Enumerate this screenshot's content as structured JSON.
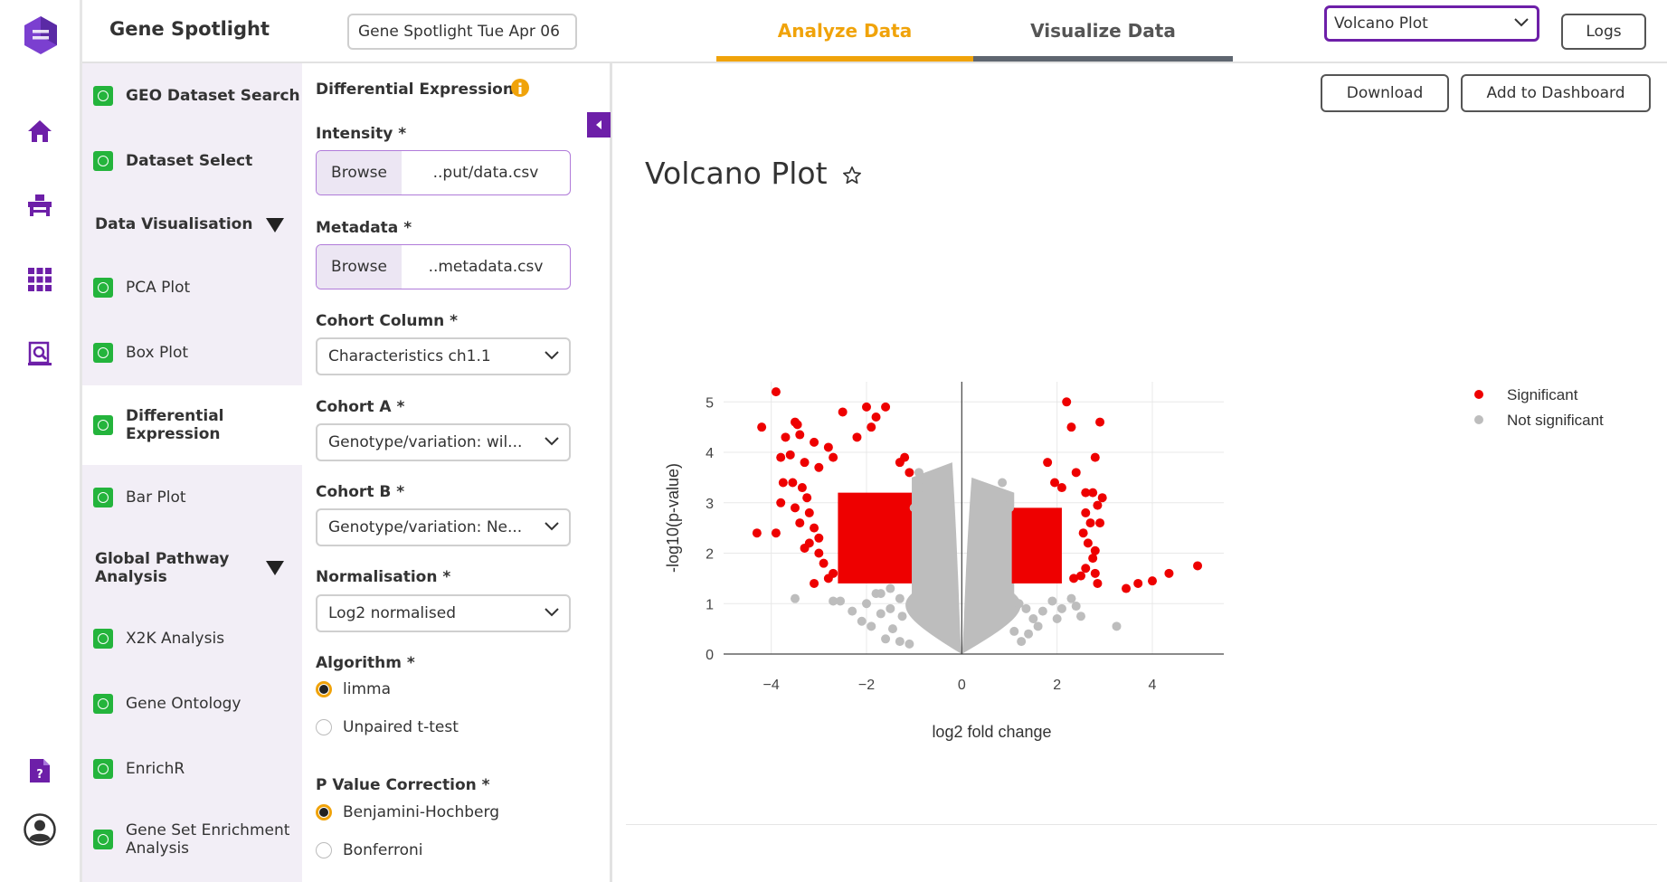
{
  "app": {
    "title": "Gene Spotlight",
    "session_name": "Gene Spotlight Tue Apr 06"
  },
  "tabs": [
    {
      "label": "Analyze Data",
      "active": true
    },
    {
      "label": "Visualize Data",
      "active": false
    }
  ],
  "header": {
    "plot_select_value": "Volcano Plot",
    "logs_label": "Logs"
  },
  "rail": {
    "icons": [
      "app-logo-icon",
      "home-icon",
      "workbench-icon",
      "grid-apps-icon",
      "dataset-viewer-icon",
      "help-document-icon",
      "user-account-icon"
    ]
  },
  "nav": {
    "items": [
      {
        "label": "GEO Dataset Search",
        "bold": true,
        "status": "done"
      },
      {
        "label": "Dataset Select",
        "bold": true,
        "status": "done"
      }
    ],
    "sections": [
      {
        "title": "Data Visualisation",
        "items": [
          {
            "label": "PCA Plot",
            "status": "done"
          },
          {
            "label": "Box Plot",
            "status": "done"
          },
          {
            "label": "Differential Expression",
            "status": "done",
            "active": true
          },
          {
            "label": "Bar Plot",
            "status": "done"
          }
        ]
      },
      {
        "title": "Global Pathway Analysis",
        "items": [
          {
            "label": "X2K Analysis",
            "status": "done"
          },
          {
            "label": "Gene Ontology",
            "status": "done"
          },
          {
            "label": "EnrichR",
            "status": "done"
          },
          {
            "label": "Gene Set Enrichment Analysis",
            "status": "done"
          }
        ]
      }
    ]
  },
  "form": {
    "title": "Differential Expression",
    "intensity": {
      "label": "Intensity *",
      "browse": "Browse",
      "file": "..put/data.csv"
    },
    "metadata": {
      "label": "Metadata *",
      "browse": "Browse",
      "file": "..metadata.csv"
    },
    "cohort_column": {
      "label": "Cohort Column *",
      "value": "Characteristics ch1.1"
    },
    "cohort_a": {
      "label": "Cohort A *",
      "value": "Genotype/variation: wil..."
    },
    "cohort_b": {
      "label": "Cohort B *",
      "value": "Genotype/variation: Ne..."
    },
    "normalisation": {
      "label": "Normalisation *",
      "value": "Log2 normalised"
    },
    "algorithm": {
      "label": "Algorithm *",
      "options": [
        "limma",
        "Unpaired t-test"
      ],
      "selected": "limma"
    },
    "p_value_correction": {
      "label": "P Value Correction *",
      "options": [
        "Benjamini-Hochberg",
        "Bonferroni"
      ],
      "selected": "Benjamini-Hochberg"
    }
  },
  "main": {
    "download_label": "Download",
    "add_dashboard_label": "Add to Dashboard",
    "plot_title": "Volcano Plot",
    "favorite_icon": "star-outline-icon"
  },
  "colors": {
    "accent_orange": "#f0a30a",
    "brand_purple": "#6d1fa8",
    "check_green": "#24b43c",
    "significant": "#ee0000",
    "not_significant": "#bdbdbd"
  },
  "chart_data": {
    "type": "scatter",
    "xlabel": "log2 fold change",
    "ylabel": "-log10(p-value)",
    "xlim": [
      -5.0,
      5.5
    ],
    "ylim": [
      0,
      5.4
    ],
    "xticks": [
      -4,
      -2,
      0,
      2,
      4
    ],
    "xtick_labels": [
      "−4",
      "−2",
      "0",
      "2",
      "4"
    ],
    "yticks": [
      0,
      1,
      2,
      3,
      4,
      5
    ],
    "ytick_labels": [
      "0",
      "1",
      "2",
      "3",
      "4",
      "5"
    ],
    "grid": true,
    "legend": "top-right",
    "series": [
      {
        "name": "Significant",
        "color": "#ee0000",
        "dense_regions": [
          {
            "x": [
              -2.6,
              -1.05
            ],
            "y": [
              1.4,
              3.2
            ]
          },
          {
            "x": [
              1.05,
              2.1
            ],
            "y": [
              1.4,
              2.9
            ]
          }
        ],
        "points": [
          [
            -3.9,
            5.2
          ],
          [
            -4.2,
            4.5
          ],
          [
            -3.5,
            4.6
          ],
          [
            -3.45,
            4.55
          ],
          [
            -3.7,
            4.3
          ],
          [
            -3.4,
            4.35
          ],
          [
            -3.1,
            4.2
          ],
          [
            -2.8,
            4.1
          ],
          [
            -2.5,
            4.8
          ],
          [
            -2.0,
            4.9
          ],
          [
            -1.6,
            4.9
          ],
          [
            -1.8,
            4.7
          ],
          [
            -1.9,
            4.5
          ],
          [
            -2.2,
            4.3
          ],
          [
            -3.8,
            3.9
          ],
          [
            -3.6,
            3.95
          ],
          [
            -3.3,
            3.8
          ],
          [
            -3.0,
            3.7
          ],
          [
            -2.7,
            3.9
          ],
          [
            -1.2,
            3.9
          ],
          [
            -1.1,
            3.6
          ],
          [
            -1.3,
            3.8
          ],
          [
            -4.3,
            2.4
          ],
          [
            -3.9,
            2.4
          ],
          [
            -3.8,
            3.0
          ],
          [
            -3.75,
            3.4
          ],
          [
            -3.55,
            3.4
          ],
          [
            -3.35,
            3.3
          ],
          [
            -3.5,
            2.9
          ],
          [
            -3.2,
            2.8
          ],
          [
            -3.4,
            2.6
          ],
          [
            -3.1,
            2.5
          ],
          [
            -3.0,
            2.3
          ],
          [
            -3.2,
            2.2
          ],
          [
            -3.0,
            2.0
          ],
          [
            -2.9,
            1.8
          ],
          [
            -2.7,
            1.6
          ],
          [
            -2.8,
            1.5
          ],
          [
            -3.1,
            1.4
          ],
          [
            -2.5,
            1.5
          ],
          [
            -2.3,
            1.5
          ],
          [
            -3.3,
            2.1
          ],
          [
            -3.25,
            3.1
          ],
          [
            2.2,
            5.0
          ],
          [
            2.3,
            4.5
          ],
          [
            2.9,
            4.6
          ],
          [
            2.8,
            3.9
          ],
          [
            1.8,
            3.8
          ],
          [
            2.4,
            3.6
          ],
          [
            1.95,
            3.4
          ],
          [
            2.1,
            3.3
          ],
          [
            2.6,
            3.2
          ],
          [
            2.75,
            3.2
          ],
          [
            2.95,
            3.1
          ],
          [
            2.85,
            2.95
          ],
          [
            2.6,
            2.8
          ],
          [
            2.7,
            2.6
          ],
          [
            2.9,
            2.6
          ],
          [
            2.55,
            2.4
          ],
          [
            2.65,
            2.2
          ],
          [
            2.8,
            2.05
          ],
          [
            2.75,
            1.9
          ],
          [
            2.6,
            1.7
          ],
          [
            2.8,
            1.6
          ],
          [
            2.85,
            1.4
          ],
          [
            2.35,
            1.5
          ],
          [
            2.5,
            1.55
          ],
          [
            3.45,
            1.3
          ],
          [
            3.7,
            1.4
          ],
          [
            4.0,
            1.45
          ],
          [
            4.35,
            1.6
          ],
          [
            4.95,
            1.75
          ]
        ]
      },
      {
        "name": "Not significant",
        "color": "#bdbdbd",
        "dense_regions": [
          {
            "funnel": "left",
            "x_inner": -0.05,
            "x_outer": -1.05,
            "y_top": 3.8
          },
          {
            "funnel": "right",
            "x_inner": 0.05,
            "x_outer": 1.1,
            "y_top": 3.5
          }
        ],
        "points": [
          [
            -3.5,
            1.1
          ],
          [
            -2.7,
            1.05
          ],
          [
            -2.55,
            1.05
          ],
          [
            -2.3,
            0.85
          ],
          [
            -2.1,
            0.65
          ],
          [
            -1.9,
            0.55
          ],
          [
            -1.8,
            1.2
          ],
          [
            -2.0,
            1.0
          ],
          [
            -1.7,
            0.8
          ],
          [
            -1.5,
            0.9
          ],
          [
            -1.6,
            0.3
          ],
          [
            -1.45,
            0.5
          ],
          [
            -1.3,
            0.25
          ],
          [
            -1.25,
            0.75
          ],
          [
            -1.1,
            0.2
          ],
          [
            -1.7,
            1.2
          ],
          [
            -1.5,
            1.3
          ],
          [
            -1.3,
            1.1
          ],
          [
            -1.0,
            2.9
          ],
          [
            -0.95,
            3.1
          ],
          [
            -0.9,
            3.6
          ],
          [
            -0.88,
            3.3
          ],
          [
            1.2,
            1.0
          ],
          [
            1.35,
            0.9
          ],
          [
            1.5,
            0.7
          ],
          [
            1.7,
            0.85
          ],
          [
            1.9,
            1.05
          ],
          [
            2.0,
            0.7
          ],
          [
            2.1,
            0.9
          ],
          [
            2.3,
            1.1
          ],
          [
            2.4,
            0.95
          ],
          [
            2.5,
            0.75
          ],
          [
            1.6,
            0.55
          ],
          [
            1.4,
            0.4
          ],
          [
            1.25,
            0.25
          ],
          [
            1.1,
            0.45
          ],
          [
            3.25,
            0.55
          ],
          [
            0.85,
            3.4
          ],
          [
            0.9,
            3.1
          ],
          [
            1.0,
            2.9
          ]
        ]
      }
    ]
  }
}
